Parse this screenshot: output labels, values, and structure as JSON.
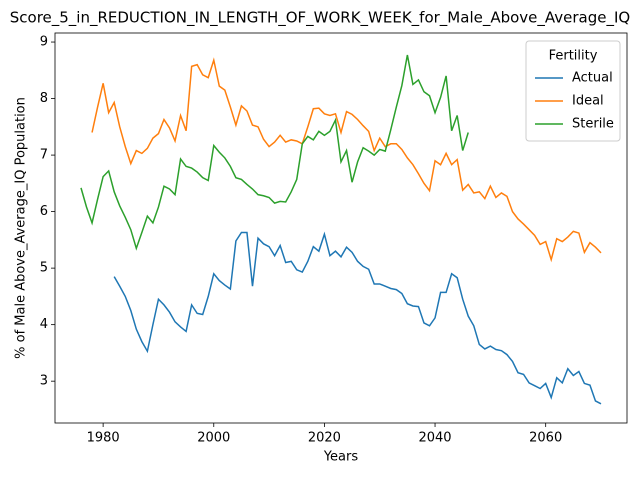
{
  "chart_data": {
    "type": "line",
    "title": "Score_5_in_REDUCTION_IN_LENGTH_OF_WORK_WEEK_for_Male_Above_Average_IQ",
    "x_label": "Years",
    "y_label": "% of Male Above_Average_IQ Population",
    "legend_title": "Fertility",
    "legend": "upper right",
    "grid": false,
    "x": [
      1976,
      1977,
      1978,
      1979,
      1980,
      1981,
      1982,
      1983,
      1984,
      1985,
      1986,
      1987,
      1988,
      1989,
      1990,
      1991,
      1992,
      1993,
      1994,
      1995,
      1996,
      1997,
      1998,
      1999,
      2000,
      2001,
      2002,
      2003,
      2004,
      2005,
      2006,
      2007,
      2008,
      2009,
      2010,
      2011,
      2012,
      2013,
      2014,
      2015,
      2016,
      2017,
      2018,
      2019,
      2020,
      2021,
      2022,
      2023,
      2024,
      2025,
      2026,
      2027,
      2028,
      2029,
      2030,
      2031,
      2032,
      2033,
      2034,
      2035,
      2036,
      2037,
      2038,
      2039,
      2040,
      2041,
      2042,
      2043,
      2044,
      2045,
      2046,
      2047,
      2048,
      2049,
      2050,
      2051,
      2052,
      2053,
      2054,
      2055,
      2056,
      2057,
      2058,
      2059,
      2060,
      2061,
      2062,
      2063,
      2064,
      2065,
      2066,
      2067,
      2068,
      2069,
      2070
    ],
    "series": [
      {
        "name": "Actual",
        "color": "#1f77b4",
        "values": [
          null,
          null,
          null,
          null,
          null,
          null,
          4.85,
          4.68,
          4.5,
          4.25,
          3.92,
          3.7,
          3.53,
          4.0,
          4.45,
          4.35,
          4.22,
          4.05,
          3.96,
          3.88,
          4.35,
          4.2,
          4.18,
          4.5,
          4.9,
          4.78,
          4.7,
          4.63,
          5.48,
          5.63,
          5.63,
          4.68,
          5.53,
          5.43,
          5.38,
          5.22,
          5.4,
          5.1,
          5.12,
          4.97,
          4.93,
          5.12,
          5.38,
          5.3,
          5.6,
          5.22,
          5.3,
          5.2,
          5.37,
          5.28,
          5.12,
          5.03,
          4.98,
          4.72,
          4.72,
          4.68,
          4.64,
          4.62,
          4.55,
          4.37,
          4.33,
          4.32,
          4.03,
          3.98,
          4.12,
          4.57,
          4.57,
          4.9,
          4.83,
          4.45,
          4.15,
          3.98,
          3.65,
          3.57,
          3.62,
          3.56,
          3.54,
          3.47,
          3.35,
          3.15,
          3.12,
          2.97,
          2.92,
          2.87,
          2.96,
          2.71,
          3.06,
          2.97,
          3.22,
          3.1,
          3.17,
          2.96,
          2.93,
          2.65,
          2.6
        ]
      },
      {
        "name": "Ideal",
        "color": "#ff7f0e",
        "values": [
          null,
          null,
          7.4,
          7.85,
          8.27,
          7.75,
          7.93,
          7.5,
          7.15,
          6.85,
          7.08,
          7.03,
          7.12,
          7.3,
          7.38,
          7.63,
          7.48,
          7.25,
          7.7,
          7.43,
          8.57,
          8.6,
          8.42,
          8.37,
          8.68,
          8.22,
          8.15,
          7.85,
          7.53,
          7.87,
          7.78,
          7.53,
          7.5,
          7.28,
          7.15,
          7.23,
          7.35,
          7.23,
          7.27,
          7.25,
          7.2,
          7.5,
          7.82,
          7.83,
          7.73,
          7.7,
          7.73,
          7.4,
          7.77,
          7.72,
          7.63,
          7.52,
          7.42,
          7.08,
          7.3,
          7.15,
          7.2,
          7.2,
          7.1,
          6.95,
          6.83,
          6.67,
          6.5,
          6.37,
          6.9,
          6.83,
          7.03,
          6.83,
          6.92,
          6.38,
          6.48,
          6.33,
          6.35,
          6.23,
          6.45,
          6.25,
          6.33,
          6.27,
          6.0,
          5.87,
          5.78,
          5.68,
          5.58,
          5.42,
          5.47,
          5.15,
          5.52,
          5.47,
          5.55,
          5.65,
          5.62,
          5.28,
          5.45,
          5.37,
          5.27
        ]
      },
      {
        "name": "Sterile",
        "color": "#2ca02c",
        "values": [
          6.42,
          6.08,
          5.8,
          6.22,
          6.62,
          6.72,
          6.35,
          6.1,
          5.9,
          5.68,
          5.35,
          5.63,
          5.92,
          5.8,
          6.08,
          6.45,
          6.4,
          6.3,
          6.93,
          6.8,
          6.77,
          6.7,
          6.6,
          6.55,
          7.17,
          7.05,
          6.95,
          6.8,
          6.6,
          6.57,
          6.48,
          6.4,
          6.3,
          6.28,
          6.25,
          6.15,
          6.18,
          6.17,
          6.35,
          6.57,
          7.2,
          7.33,
          7.27,
          7.42,
          7.35,
          7.42,
          7.62,
          6.88,
          7.08,
          6.52,
          6.88,
          7.13,
          7.07,
          7.0,
          7.1,
          7.07,
          7.45,
          7.85,
          8.23,
          8.77,
          8.25,
          8.33,
          8.12,
          8.05,
          7.75,
          8.02,
          8.4,
          7.43,
          7.7,
          7.08,
          7.4,
          null,
          null,
          null,
          null,
          null,
          null,
          null,
          null,
          null,
          null,
          null,
          null,
          null,
          null,
          null,
          null,
          null,
          null,
          null,
          null,
          null,
          null,
          null,
          null
        ]
      }
    ],
    "xlim": [
      1971.3,
      2074.7
    ],
    "xticks": [
      1980,
      2000,
      2020,
      2040,
      2060
    ],
    "ylim": [
      2.26,
      9.16
    ],
    "yticks": [
      3,
      4,
      5,
      6,
      7,
      8,
      9
    ]
  }
}
